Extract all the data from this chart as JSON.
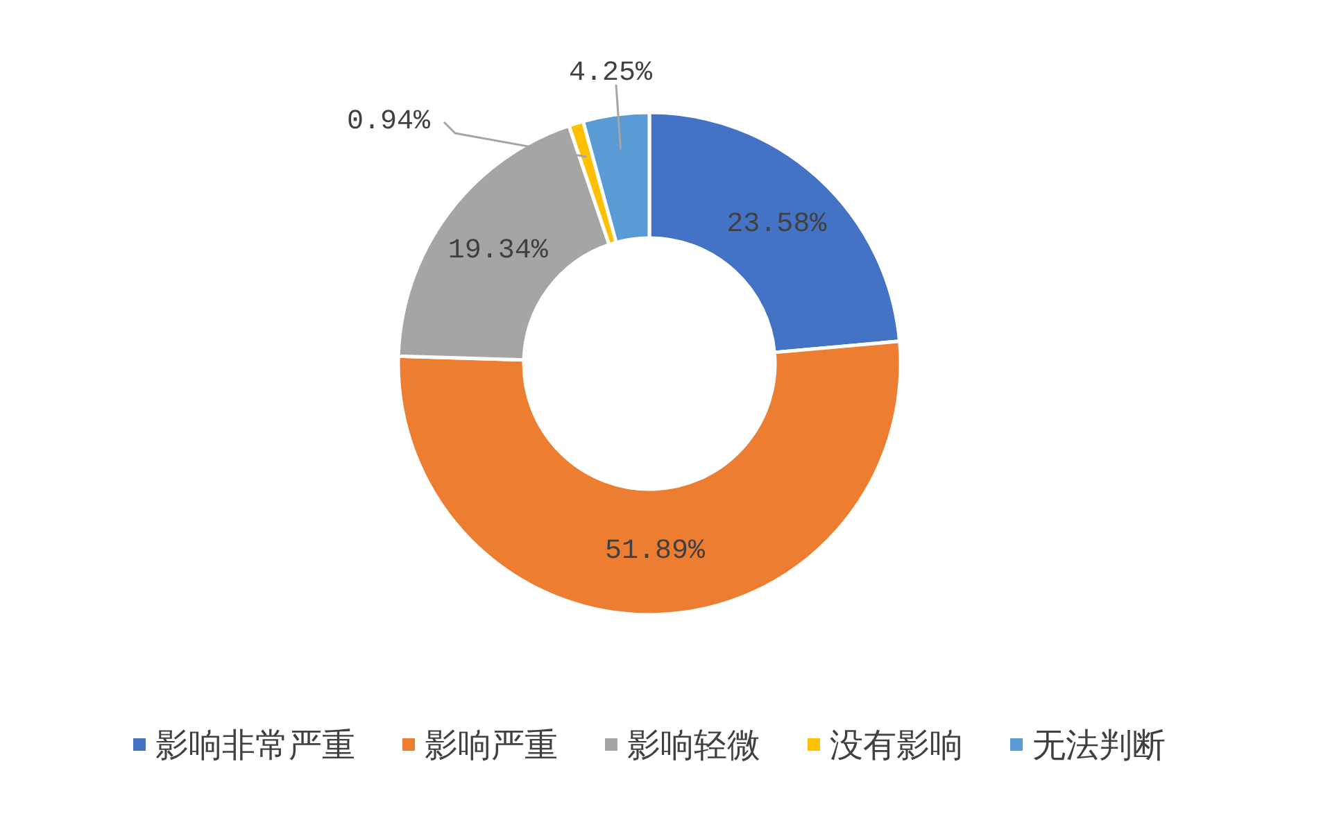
{
  "chart_data": {
    "type": "donut",
    "categories": [
      "影响非常严重",
      "影响严重",
      "影响轻微",
      "没有影响",
      "无法判断"
    ],
    "values": [
      23.58,
      51.89,
      19.34,
      0.94,
      4.25
    ],
    "colors": [
      "#4472c4",
      "#ed7d31",
      "#a5a5a5",
      "#ffc000",
      "#5b9bd5"
    ],
    "value_labels": [
      "23.58%",
      "51.89%",
      "19.34%",
      "0.94%",
      "4.25%"
    ],
    "legend": "bottom"
  }
}
